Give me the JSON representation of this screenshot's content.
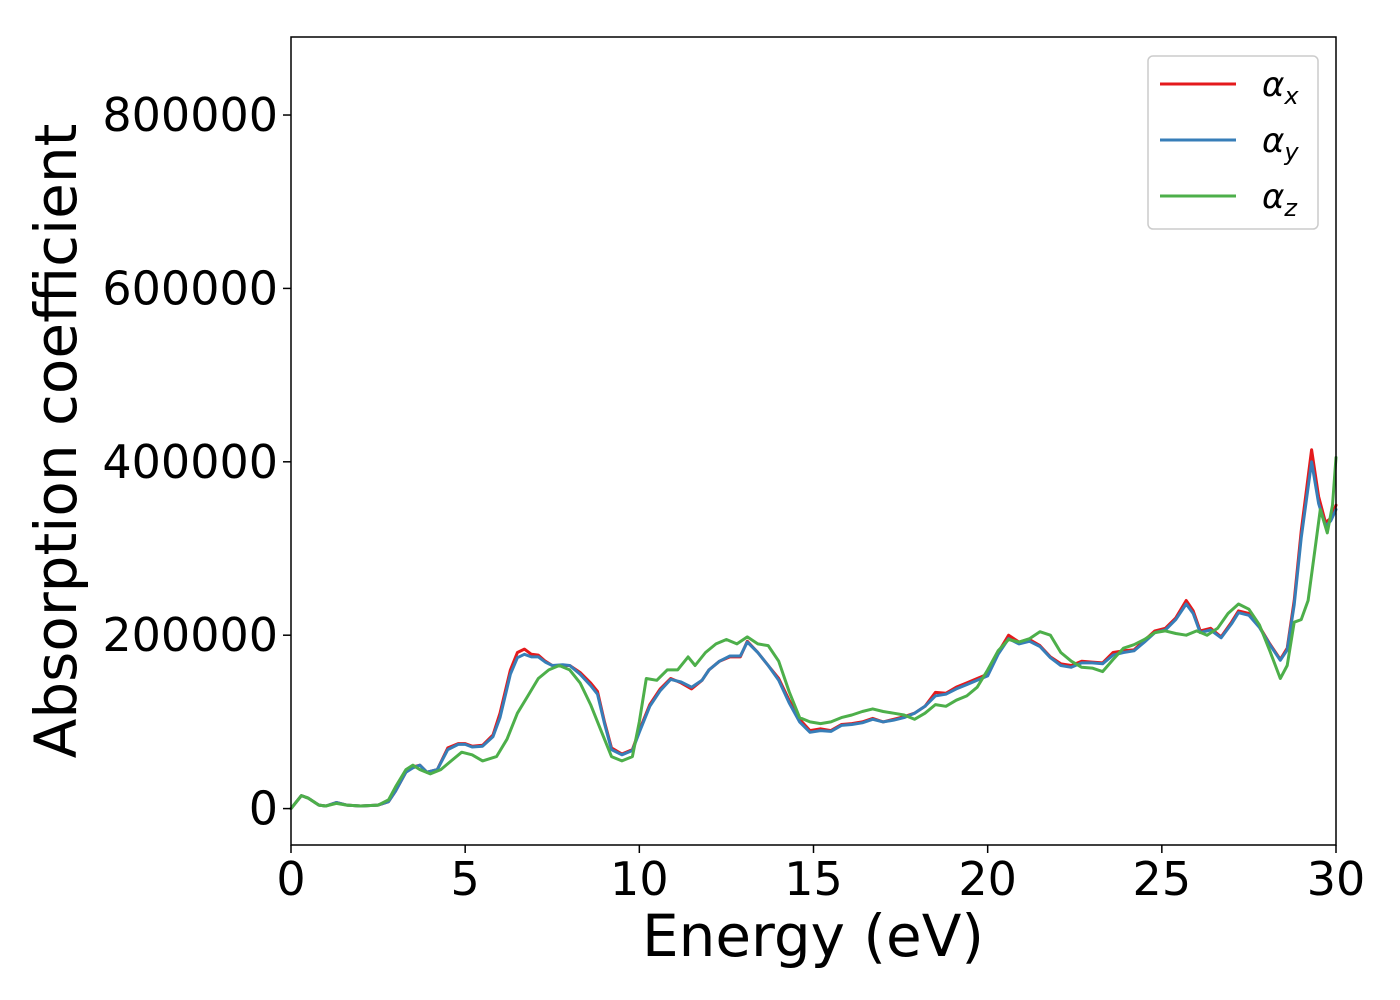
{
  "chart_data": {
    "type": "line",
    "xlabel": "Energy (eV)",
    "ylabel": "Absorption coefficient",
    "xlim": [
      0,
      30
    ],
    "ylim": [
      -42000,
      890000
    ],
    "xticks": [
      0,
      5,
      10,
      15,
      20,
      25,
      30
    ],
    "yticks": [
      0,
      200000,
      400000,
      600000,
      800000
    ],
    "grid": false,
    "legend_position": "top-right",
    "series": [
      {
        "name": "α",
        "subscript": "x",
        "color": "#e41a1c",
        "x": [
          0,
          0.3,
          0.5,
          0.8,
          1.0,
          1.3,
          1.6,
          2.0,
          2.5,
          2.8,
          3.0,
          3.3,
          3.5,
          3.7,
          3.9,
          4.2,
          4.5,
          4.8,
          5.0,
          5.2,
          5.5,
          5.8,
          6.0,
          6.3,
          6.5,
          6.7,
          6.9,
          7.1,
          7.3,
          7.5,
          7.8,
          8.0,
          8.3,
          8.6,
          8.8,
          9.0,
          9.2,
          9.5,
          9.8,
          10.0,
          10.3,
          10.6,
          10.9,
          11.2,
          11.5,
          11.8,
          12.0,
          12.3,
          12.6,
          12.9,
          13.1,
          13.4,
          13.7,
          14.0,
          14.3,
          14.6,
          14.9,
          15.2,
          15.5,
          15.8,
          16.1,
          16.4,
          16.7,
          17.0,
          17.3,
          17.6,
          17.9,
          18.2,
          18.5,
          18.8,
          19.1,
          19.4,
          19.7,
          20.0,
          20.3,
          20.6,
          20.9,
          21.2,
          21.5,
          21.8,
          22.1,
          22.4,
          22.7,
          23.0,
          23.3,
          23.6,
          23.9,
          24.2,
          24.5,
          24.8,
          25.1,
          25.4,
          25.7,
          25.9,
          26.1,
          26.4,
          26.7,
          27.0,
          27.2,
          27.5,
          27.8,
          28.1,
          28.4,
          28.6,
          28.8,
          29.0,
          29.3,
          29.5,
          29.7,
          29.85,
          30.0
        ],
        "y": [
          0,
          15000,
          12000,
          4000,
          3000,
          7000,
          4000,
          3000,
          4000,
          8000,
          20000,
          42000,
          48000,
          50000,
          42000,
          45000,
          70000,
          75000,
          75000,
          72000,
          73000,
          85000,
          110000,
          160000,
          180000,
          184000,
          178000,
          177000,
          170000,
          165000,
          165000,
          165000,
          157000,
          145000,
          135000,
          100000,
          70000,
          63000,
          68000,
          90000,
          120000,
          138000,
          150000,
          145000,
          138000,
          148000,
          160000,
          170000,
          175000,
          175000,
          193000,
          180000,
          165000,
          150000,
          125000,
          103000,
          90000,
          92000,
          90000,
          97000,
          98000,
          100000,
          104000,
          100000,
          103000,
          106000,
          110000,
          118000,
          134000,
          133000,
          140000,
          145000,
          150000,
          155000,
          180000,
          200000,
          192000,
          195000,
          188000,
          175000,
          167000,
          165000,
          170000,
          169000,
          168000,
          180000,
          182000,
          183000,
          194000,
          205000,
          208000,
          220000,
          240000,
          228000,
          205000,
          208000,
          198000,
          215000,
          228000,
          225000,
          210000,
          190000,
          172000,
          185000,
          240000,
          320000,
          414000,
          360000,
          330000,
          335000,
          350000
        ]
      },
      {
        "name": "α",
        "subscript": "y",
        "color": "#377eb8",
        "x": [
          0,
          0.3,
          0.5,
          0.8,
          1.0,
          1.3,
          1.6,
          2.0,
          2.5,
          2.8,
          3.0,
          3.3,
          3.5,
          3.7,
          3.9,
          4.2,
          4.5,
          4.8,
          5.0,
          5.2,
          5.5,
          5.8,
          6.0,
          6.3,
          6.5,
          6.7,
          6.9,
          7.1,
          7.3,
          7.5,
          7.8,
          8.0,
          8.3,
          8.6,
          8.8,
          9.0,
          9.2,
          9.5,
          9.8,
          10.0,
          10.3,
          10.6,
          10.9,
          11.2,
          11.5,
          11.8,
          12.0,
          12.3,
          12.6,
          12.9,
          13.1,
          13.4,
          13.7,
          14.0,
          14.3,
          14.6,
          14.9,
          15.2,
          15.5,
          15.8,
          16.1,
          16.4,
          16.7,
          17.0,
          17.3,
          17.6,
          17.9,
          18.2,
          18.5,
          18.8,
          19.1,
          19.4,
          19.7,
          20.0,
          20.3,
          20.6,
          20.9,
          21.2,
          21.5,
          21.8,
          22.1,
          22.4,
          22.7,
          23.0,
          23.3,
          23.6,
          23.9,
          24.2,
          24.5,
          24.8,
          25.1,
          25.4,
          25.7,
          25.9,
          26.1,
          26.4,
          26.7,
          27.0,
          27.2,
          27.5,
          27.8,
          28.1,
          28.4,
          28.6,
          28.8,
          29.0,
          29.3,
          29.5,
          29.7,
          29.85,
          30.0
        ],
        "y": [
          0,
          15000,
          12000,
          4000,
          3000,
          7000,
          4000,
          3000,
          4000,
          8000,
          20000,
          42000,
          47000,
          50000,
          42000,
          45000,
          68000,
          74000,
          74000,
          71000,
          72000,
          83000,
          105000,
          155000,
          174000,
          178000,
          175000,
          175000,
          169000,
          165000,
          166000,
          165000,
          155000,
          142000,
          132000,
          98000,
          68000,
          62000,
          67000,
          88000,
          118000,
          136000,
          149000,
          146000,
          140000,
          148000,
          160000,
          170000,
          176000,
          176000,
          192000,
          180000,
          165000,
          148000,
          122000,
          100000,
          88000,
          90000,
          89000,
          96000,
          97000,
          99000,
          103000,
          100000,
          102000,
          105000,
          110000,
          118000,
          130000,
          132000,
          138000,
          143000,
          148000,
          153000,
          178000,
          196000,
          190000,
          193000,
          187000,
          174000,
          165000,
          163000,
          168000,
          168000,
          167000,
          177000,
          180000,
          182000,
          192000,
          203000,
          206000,
          218000,
          236000,
          225000,
          203000,
          206000,
          197000,
          213000,
          226000,
          223000,
          209000,
          189000,
          171000,
          183000,
          235000,
          312000,
          400000,
          352000,
          326000,
          332000,
          345000
        ]
      },
      {
        "name": "α",
        "subscript": "z",
        "color": "#4daf4a",
        "x": [
          0,
          0.3,
          0.5,
          0.8,
          1.0,
          1.3,
          1.6,
          2.0,
          2.5,
          2.8,
          3.0,
          3.3,
          3.5,
          3.7,
          4.0,
          4.3,
          4.6,
          4.9,
          5.2,
          5.5,
          5.9,
          6.2,
          6.5,
          6.8,
          7.1,
          7.4,
          7.7,
          8.0,
          8.3,
          8.6,
          8.9,
          9.2,
          9.5,
          9.8,
          10.0,
          10.2,
          10.5,
          10.8,
          11.1,
          11.4,
          11.6,
          11.9,
          12.2,
          12.5,
          12.8,
          13.1,
          13.4,
          13.7,
          14.0,
          14.3,
          14.6,
          14.9,
          15.2,
          15.5,
          15.8,
          16.1,
          16.4,
          16.7,
          17.0,
          17.3,
          17.6,
          17.9,
          18.2,
          18.5,
          18.8,
          19.1,
          19.4,
          19.7,
          20.0,
          20.3,
          20.6,
          20.9,
          21.2,
          21.5,
          21.8,
          22.1,
          22.4,
          22.7,
          23.0,
          23.3,
          23.6,
          23.9,
          24.2,
          24.5,
          24.8,
          25.1,
          25.4,
          25.7,
          26.0,
          26.3,
          26.6,
          26.9,
          27.2,
          27.5,
          27.8,
          28.1,
          28.4,
          28.6,
          28.8,
          29.0,
          29.2,
          29.4,
          29.55,
          29.75,
          29.9,
          30.0
        ],
        "y": [
          0,
          15000,
          12000,
          4000,
          3000,
          6000,
          4000,
          3000,
          4000,
          10000,
          25000,
          45000,
          50000,
          45000,
          40000,
          45000,
          55000,
          65000,
          62000,
          55000,
          60000,
          80000,
          110000,
          130000,
          150000,
          160000,
          165000,
          160000,
          145000,
          120000,
          90000,
          60000,
          55000,
          60000,
          100000,
          150000,
          148000,
          160000,
          160000,
          175000,
          165000,
          180000,
          190000,
          195000,
          190000,
          198000,
          190000,
          188000,
          170000,
          135000,
          105000,
          100000,
          98000,
          100000,
          105000,
          108000,
          112000,
          115000,
          112000,
          110000,
          108000,
          103000,
          110000,
          120000,
          118000,
          125000,
          130000,
          140000,
          160000,
          182000,
          195000,
          192000,
          196000,
          204000,
          200000,
          180000,
          170000,
          163000,
          162000,
          158000,
          172000,
          185000,
          189000,
          195000,
          203000,
          205000,
          202000,
          200000,
          205000,
          200000,
          208000,
          225000,
          236000,
          230000,
          212000,
          182000,
          150000,
          165000,
          215000,
          218000,
          240000,
          300000,
          345000,
          318000,
          350000,
          405000
        ]
      }
    ]
  }
}
